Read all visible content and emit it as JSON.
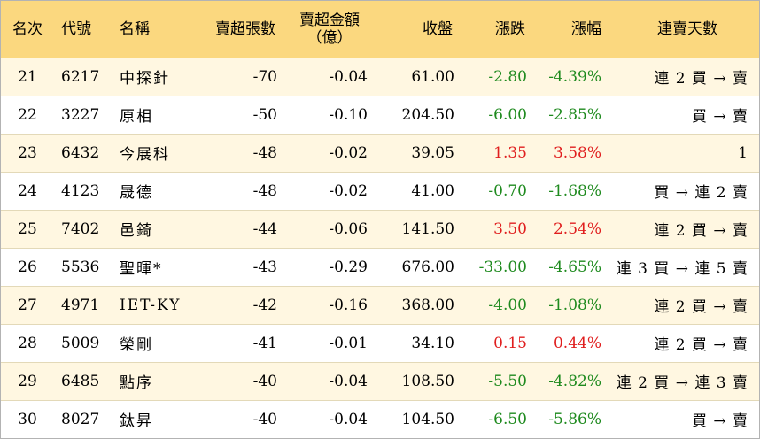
{
  "headers": {
    "rank": "名次",
    "code": "代號",
    "name": "名稱",
    "net_lots": "賣超張數",
    "net_amount_line1": "賣超金額",
    "net_amount_line2": "（億）",
    "close": "收盤",
    "change": "漲跌",
    "change_pct": "漲幅",
    "streak": "連賣天數"
  },
  "rows": [
    {
      "rank": "21",
      "code": "6217",
      "name": "中探針",
      "net_lots": "-70",
      "net_amount": "-0.04",
      "close": "61.00",
      "change": "-2.80",
      "change_pct": "-4.39%",
      "direction": "down",
      "streak": "連 2 買 → 賣"
    },
    {
      "rank": "22",
      "code": "3227",
      "name": "原相",
      "net_lots": "-50",
      "net_amount": "-0.10",
      "close": "204.50",
      "change": "-6.00",
      "change_pct": "-2.85%",
      "direction": "down",
      "streak": "買 → 賣"
    },
    {
      "rank": "23",
      "code": "6432",
      "name": "今展科",
      "net_lots": "-48",
      "net_amount": "-0.02",
      "close": "39.05",
      "change": "1.35",
      "change_pct": "3.58%",
      "direction": "up",
      "streak": "1"
    },
    {
      "rank": "24",
      "code": "4123",
      "name": "晟德",
      "net_lots": "-48",
      "net_amount": "-0.02",
      "close": "41.00",
      "change": "-0.70",
      "change_pct": "-1.68%",
      "direction": "down",
      "streak": "買 → 連 2 賣"
    },
    {
      "rank": "25",
      "code": "7402",
      "name": "邑錡",
      "net_lots": "-44",
      "net_amount": "-0.06",
      "close": "141.50",
      "change": "3.50",
      "change_pct": "2.54%",
      "direction": "up",
      "streak": "連 2 買 → 賣"
    },
    {
      "rank": "26",
      "code": "5536",
      "name": "聖暉*",
      "net_lots": "-43",
      "net_amount": "-0.29",
      "close": "676.00",
      "change": "-33.00",
      "change_pct": "-4.65%",
      "direction": "down",
      "streak": "連 3 買 → 連 5 賣"
    },
    {
      "rank": "27",
      "code": "4971",
      "name": "IET-KY",
      "net_lots": "-42",
      "net_amount": "-0.16",
      "close": "368.00",
      "change": "-4.00",
      "change_pct": "-1.08%",
      "direction": "down",
      "streak": "連 2 買 → 賣"
    },
    {
      "rank": "28",
      "code": "5009",
      "name": "榮剛",
      "net_lots": "-41",
      "net_amount": "-0.01",
      "close": "34.10",
      "change": "0.15",
      "change_pct": "0.44%",
      "direction": "up",
      "streak": "連 2 買 → 賣"
    },
    {
      "rank": "29",
      "code": "6485",
      "name": "點序",
      "net_lots": "-40",
      "net_amount": "-0.04",
      "close": "108.50",
      "change": "-5.50",
      "change_pct": "-4.82%",
      "direction": "down",
      "streak": "連 2 買 → 連 3 賣"
    },
    {
      "rank": "30",
      "code": "8027",
      "name": "鈦昇",
      "net_lots": "-40",
      "net_amount": "-0.04",
      "close": "104.50",
      "change": "-6.50",
      "change_pct": "-5.86%",
      "direction": "down",
      "streak": "買 → 賣"
    }
  ],
  "colors": {
    "header_bg": "#fbd87f",
    "odd_row_bg": "#fff7e1",
    "even_row_bg": "#ffffff",
    "down": "#1e8a1e",
    "up": "#e01e1e"
  }
}
